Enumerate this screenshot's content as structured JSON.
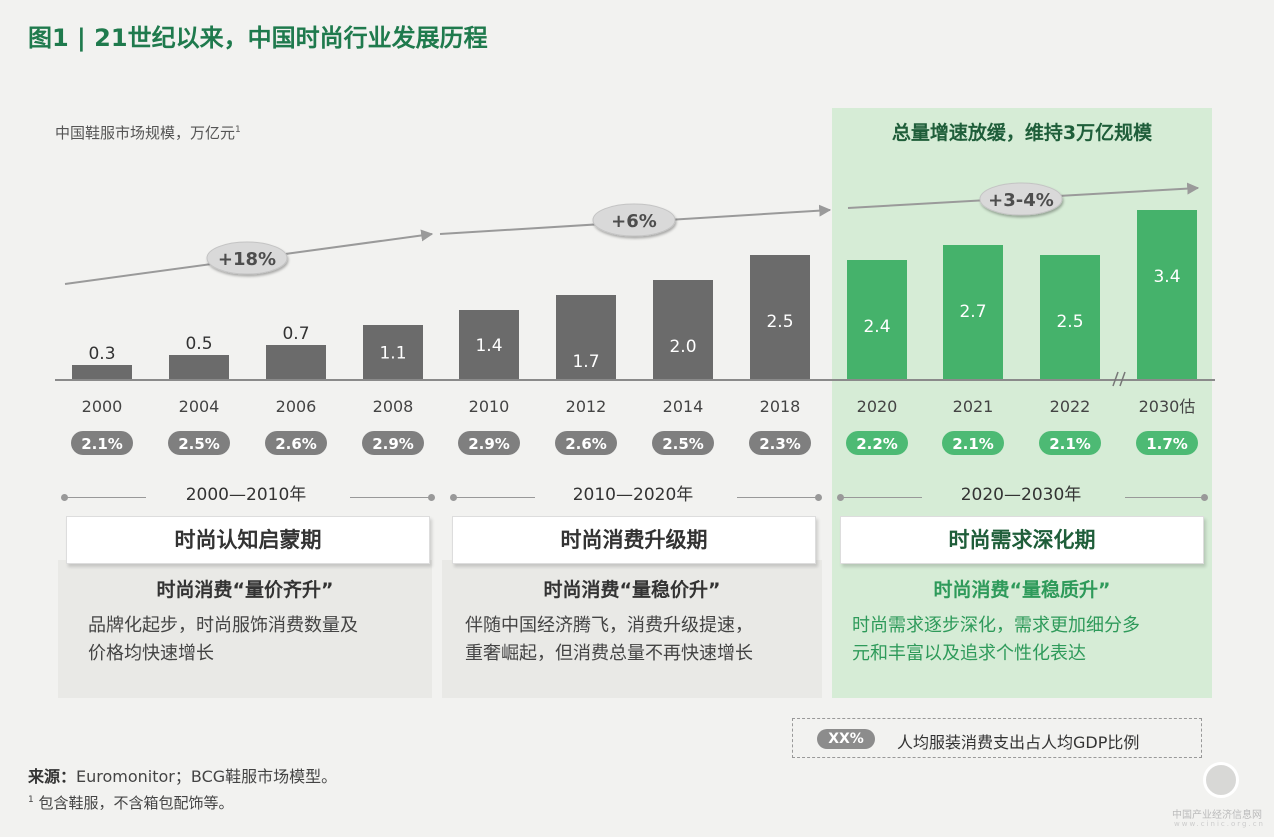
{
  "title": "图1 | 21世纪以来，中国时尚行业发展历程",
  "ylabel": "中国鞋服市场规模，万亿元",
  "ylabel_sup": "1",
  "green_title": "总量增速放缓，维持3万亿规模",
  "chart_data": {
    "type": "bar",
    "categories": [
      "2000",
      "2004",
      "2006",
      "2008",
      "2010",
      "2012",
      "2014",
      "2018",
      "2020",
      "2021",
      "2022",
      "2030估"
    ],
    "values": [
      0.3,
      0.5,
      0.7,
      1.1,
      1.4,
      1.7,
      2.0,
      2.5,
      2.4,
      2.7,
      2.5,
      3.4
    ],
    "bar_groups": [
      "gray",
      "gray",
      "gray",
      "gray",
      "gray",
      "gray",
      "gray",
      "gray",
      "green",
      "green",
      "green",
      "green"
    ],
    "ratio_series": {
      "label": "人均服装消费支出占人均GDP比例",
      "values": [
        "2.1%",
        "2.5%",
        "2.6%",
        "2.9%",
        "2.9%",
        "2.6%",
        "2.5%",
        "2.3%",
        "2.2%",
        "2.1%",
        "2.1%",
        "1.7%"
      ]
    },
    "growth_annotations": [
      "+18%",
      "+6%",
      "+3-4%"
    ],
    "colors": {
      "gray": "#6b6b6b",
      "green": "#45b26b",
      "pill_gray": "#7f7f7f",
      "pill_green": "#4dba74"
    }
  },
  "periods": [
    {
      "range": "2000—2010年",
      "name": "时尚认知启蒙期",
      "subtitle": "时尚消费“量价齐升”",
      "desc": [
        "品牌化起步，时尚服饰消费数量及",
        "价格均快速增长"
      ]
    },
    {
      "range": "2010—2020年",
      "name": "时尚消费升级期",
      "subtitle": "时尚消费“量稳价升”",
      "desc": [
        "伴随中国经济腾飞，消费升级提速，",
        "重奢崛起，但消费总量不再快速增长"
      ]
    },
    {
      "range": "2020—2030年",
      "name": "时尚需求深化期",
      "subtitle": "时尚消费“量稳质升”",
      "desc": [
        "时尚需求逐步深化，需求更加细分多",
        "元和丰富以及追求个性化表达"
      ]
    }
  ],
  "legend": {
    "pill": "XX%",
    "text": "人均服装消费支出占人均GDP比例"
  },
  "source": {
    "label": "来源：",
    "text": "Euromonitor；BCG鞋服市场模型。"
  },
  "note": {
    "sup": "1",
    "text": "包含鞋服，不含箱包配饰等。"
  },
  "watermark": {
    "text": "中国产业经济信息网",
    "sub": "www.cinic.org.cn"
  }
}
